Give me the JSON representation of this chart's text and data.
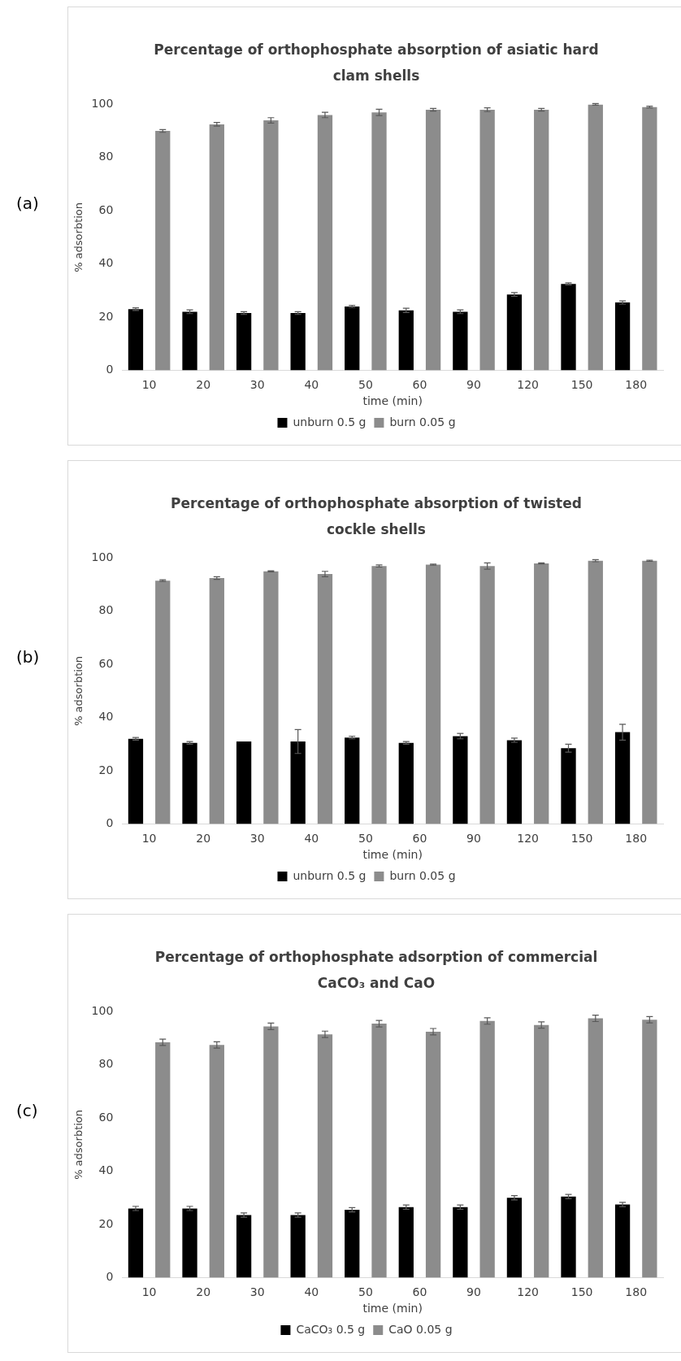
{
  "chart_data": [
    {
      "type": "bar",
      "title": "Percentage of orthophosphate absorption of asiatic hard clam shells",
      "xlabel": "time (min)",
      "ylabel": "% adsorbtion",
      "annotations": [
        "(a)"
      ],
      "categories": [
        "10",
        "20",
        "30",
        "40",
        "50",
        "60",
        "90",
        "120",
        "150",
        "180"
      ],
      "ylim": [
        0,
        100
      ],
      "yticks": [
        0,
        20,
        40,
        60,
        80,
        100
      ],
      "legend": "bottom",
      "series": [
        {
          "name": "unburn 0.5 g",
          "color": "#000000",
          "values": [
            23,
            22,
            21.5,
            21.5,
            24,
            22.5,
            22,
            28.5,
            32.5,
            25.5
          ],
          "errors": [
            0.5,
            0.7,
            0.5,
            0.5,
            0.4,
            0.8,
            0.7,
            0.7,
            0.4,
            0.6
          ]
        },
        {
          "name": "burn 0.05 g",
          "color": "#8c8c8c",
          "values": [
            90,
            92.5,
            94,
            96,
            97,
            98,
            98,
            98,
            100,
            99
          ],
          "errors": [
            0.5,
            0.7,
            1,
            1,
            1.2,
            0.5,
            0.7,
            0.5,
            0.3,
            0.3
          ]
        }
      ]
    },
    {
      "type": "bar",
      "title": "Percentage of orthophosphate absorption of twisted cockle shells",
      "xlabel": "time (min)",
      "ylabel": "% adsorbtion",
      "annotations": [
        "(b)"
      ],
      "categories": [
        "10",
        "20",
        "30",
        "40",
        "50",
        "60",
        "90",
        "120",
        "150",
        "180"
      ],
      "ylim": [
        0,
        100
      ],
      "yticks": [
        0,
        20,
        40,
        60,
        80,
        100
      ],
      "legend": "bottom",
      "series": [
        {
          "name": "unburn 0.5 g",
          "color": "#000000",
          "values": [
            32,
            30.5,
            31,
            31,
            32.5,
            30.5,
            33,
            31.5,
            28.5,
            34.5
          ],
          "errors": [
            0.5,
            0.5,
            null,
            4.5,
            0.5,
            0.5,
            1,
            0.8,
            1.5,
            3
          ]
        },
        {
          "name": "burn 0.05 g",
          "color": "#8c8c8c",
          "values": [
            91.5,
            92.5,
            95,
            94,
            97,
            97.5,
            97,
            98,
            99,
            99
          ],
          "errors": [
            0.3,
            0.5,
            0.2,
            1,
            0.4,
            0.2,
            1.2,
            0.2,
            0.4,
            0.2
          ]
        }
      ]
    },
    {
      "type": "bar",
      "title": "Percentage of orthophosphate adsorption  of commercial CaCO₃ and CaO",
      "xlabel": "time (min)",
      "ylabel": "% adsorbtion",
      "annotations": [
        "(c)"
      ],
      "categories": [
        "10",
        "20",
        "30",
        "40",
        "50",
        "60",
        "90",
        "120",
        "150",
        "180"
      ],
      "ylim": [
        0,
        100
      ],
      "yticks": [
        0,
        20,
        40,
        60,
        80,
        100
      ],
      "legend": "bottom",
      "series": [
        {
          "name": "CaCO₃ 0.5 g",
          "color": "#000000",
          "values": [
            26,
            26,
            23.5,
            23.5,
            25.5,
            26.5,
            26.5,
            30,
            30.5,
            27.5
          ],
          "errors": [
            0.8,
            0.8,
            0.8,
            0.8,
            0.8,
            0.8,
            0.8,
            0.8,
            0.8,
            0.8
          ]
        },
        {
          "name": "CaO 0.05 g",
          "color": "#8c8c8c",
          "values": [
            88.5,
            87.5,
            94.5,
            91.5,
            95.5,
            92.5,
            96.5,
            95,
            97.5,
            97
          ],
          "errors": [
            1.2,
            1.2,
            1.2,
            1.2,
            1.2,
            1.2,
            1.2,
            1.2,
            1.2,
            1.2
          ]
        }
      ]
    }
  ]
}
